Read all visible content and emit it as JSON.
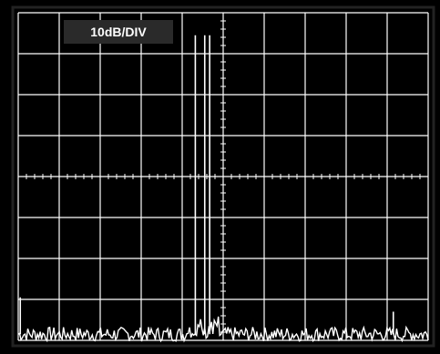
{
  "display": {
    "scale_label": "10dB/DIV"
  },
  "colors": {
    "bezel": "#000000",
    "frame_border": "#222222",
    "screen": "#000000",
    "grid": "#ffffff",
    "trace": "#ffffff",
    "label_box": "#2a2a2a",
    "label_text": "#ffffff"
  },
  "chart_data": {
    "type": "line",
    "title": "",
    "xlabel": "",
    "ylabel": "",
    "grid": true,
    "x_divisions": 10,
    "y_divisions": 8,
    "xlim": [
      0,
      10
    ],
    "ylim": [
      0,
      8
    ],
    "y_units_per_div": "10dB",
    "noise_floor_div": 0.15,
    "noise_amplitude_div": 0.22,
    "noise_points": 300,
    "noise_seed": 7,
    "signal_region": {
      "x_start": 4.1,
      "x_end": 4.9,
      "level_div": 0.3
    },
    "series": [
      {
        "values": [
          {
            "x": 0.05,
            "y": 1.05
          },
          {
            "x": 4.32,
            "y": 7.45
          },
          {
            "x": 4.55,
            "y": 7.45
          },
          {
            "x": 4.67,
            "y": 7.45
          },
          {
            "x": 9.15,
            "y": 0.7
          }
        ]
      }
    ]
  }
}
